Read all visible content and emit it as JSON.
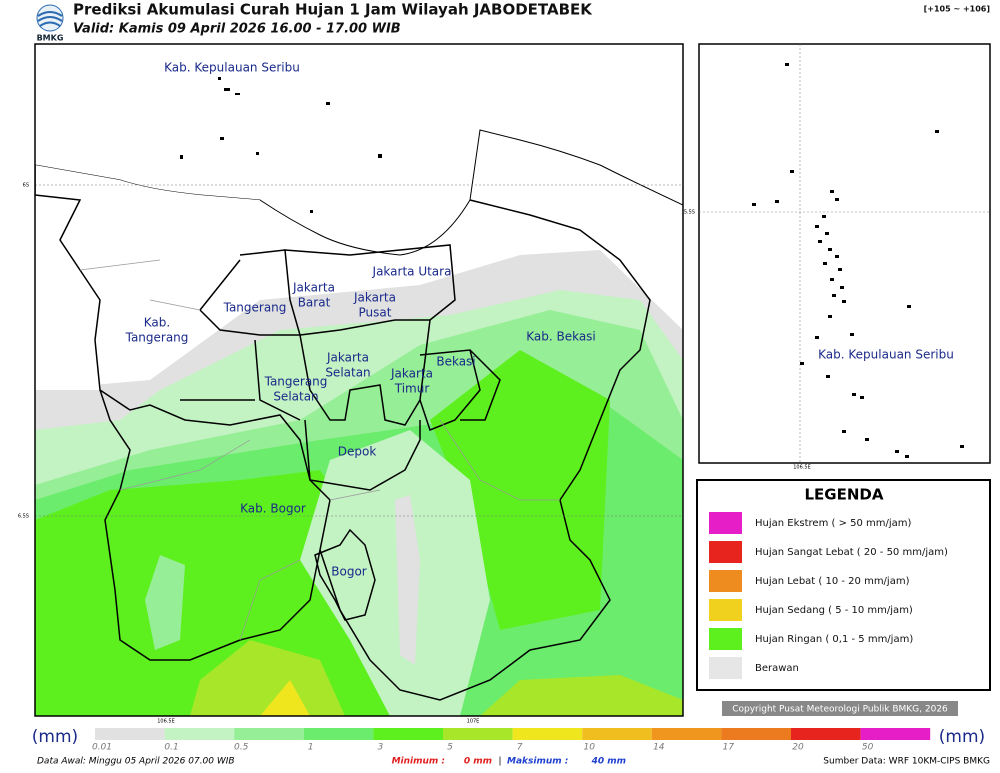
{
  "header": {
    "logo": "BMKG",
    "title": "Prediksi Akumulasi Curah Hujan 1 Jam Wilayah JABODETABEK",
    "subtitle": "Valid: Kamis 09 April 2026 16.00 - 17.00 WIB",
    "range": "[+105 ~ +106]"
  },
  "map": {
    "regions": [
      {
        "lines": [
          "Kab. Kepulauan Seribu"
        ]
      },
      {
        "lines": [
          "Jakarta Utara"
        ]
      },
      {
        "lines": [
          "Jakarta",
          "Barat"
        ]
      },
      {
        "lines": [
          "Jakarta",
          "Pusat"
        ]
      },
      {
        "lines": [
          "Tangerang"
        ]
      },
      {
        "lines": [
          "Kab.",
          "Tangerang"
        ]
      },
      {
        "lines": [
          "Kab. Bekasi"
        ]
      },
      {
        "lines": [
          "Jakarta",
          "Selatan"
        ]
      },
      {
        "lines": [
          "Jakarta",
          "Timur"
        ]
      },
      {
        "lines": [
          "Bekasi"
        ]
      },
      {
        "lines": [
          "Tangerang",
          "Selatan"
        ]
      },
      {
        "lines": [
          "Depok"
        ]
      },
      {
        "lines": [
          "Kab. Bogor"
        ]
      },
      {
        "lines": [
          "Bogor"
        ]
      }
    ],
    "lat_labels": [
      "6S",
      "6.5S"
    ],
    "lon_labels": [
      "106.5E",
      "107E"
    ]
  },
  "inset": {
    "label": "Kab. Kepulauan Seribu",
    "lat_label": "5.5S",
    "lon_label": "106.5E"
  },
  "legend": {
    "title": "LEGENDA",
    "items": [
      {
        "label": "Hujan Ekstrem ( > 50 mm/jam)",
        "color": "#e61ec8"
      },
      {
        "label": "Hujan Sangat Lebat ( 20 - 50 mm/jam)",
        "color": "#e8241e"
      },
      {
        "label": "Hujan Lebat ( 10 - 20 mm/jam)",
        "color": "#ee8c20"
      },
      {
        "label": "Hujan Sedang ( 5 - 10 mm/jam)",
        "color": "#f0d21e"
      },
      {
        "label": "Hujan Ringan ( 0,1 - 5 mm/jam)",
        "color": "#5ef01e"
      },
      {
        "label": "Berawan",
        "color": "#e6e6e6"
      }
    ]
  },
  "copyright": "Copyright Pusat Meteorologi Publik BMKG, 2026",
  "colorbar": {
    "unit": "(mm)",
    "ticks": [
      "0.01",
      "0.1",
      "0.5",
      "1",
      "3",
      "5",
      "7",
      "10",
      "14",
      "17",
      "20",
      "50"
    ],
    "colors": [
      "#e1e1e1",
      "#c3f2c3",
      "#96ee96",
      "#6cec6c",
      "#5ef01e",
      "#a8e62a",
      "#f0e61e",
      "#f0be1e",
      "#f0961e",
      "#ec7a1e",
      "#e8241e",
      "#e61ec8"
    ]
  },
  "footer": {
    "start": "Data Awal: Minggu 05 April 2026 07.00 WIB",
    "min_label": "Minimum :",
    "min_value": "0 mm",
    "separator": "|",
    "max_label": "Maksimum :",
    "max_value": "40 mm",
    "source": "Sumber Data: WRF 10KM-CIPS BMKG"
  }
}
